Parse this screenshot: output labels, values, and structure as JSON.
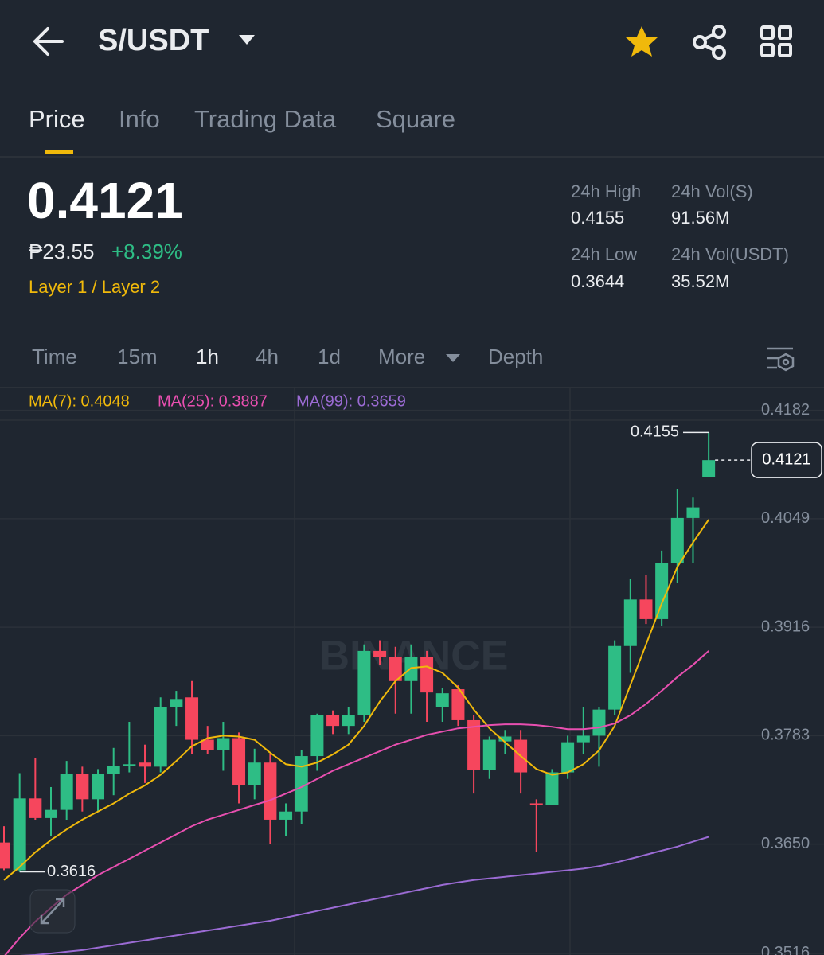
{
  "header": {
    "title": "S/USDT"
  },
  "tabs": [
    "Price",
    "Info",
    "Trading Data",
    "Square"
  ],
  "ticker": {
    "price": "0.4121",
    "local_price": "₱23.55",
    "change": "+8.39%",
    "tag": "Layer 1 / Layer 2",
    "stats": [
      {
        "label": "24h High",
        "value": "0.4155"
      },
      {
        "label": "24h Vol(S)",
        "value": "91.56M"
      },
      {
        "label": "24h Low",
        "value": "0.3644"
      },
      {
        "label": "24h Vol(USDT)",
        "value": "35.52M"
      }
    ]
  },
  "intervals": [
    "Time",
    "15m",
    "1h",
    "4h",
    "1d",
    "More",
    "Depth"
  ],
  "chart_data": {
    "type": "candlestick",
    "watermark": "BINANCE",
    "up_color": "#2ebd85",
    "down_color": "#f6465d",
    "open": [
      0.3652,
      0.3618,
      0.3706,
      0.3682,
      0.3692,
      0.3736,
      0.3705,
      0.3736,
      0.3746,
      0.375,
      0.3745,
      0.3818,
      0.383,
      0.3778,
      0.3765,
      0.378,
      0.3722,
      0.375,
      0.368,
      0.369,
      0.3758,
      0.3808,
      0.3795,
      0.3808,
      0.3887,
      0.388,
      0.385,
      0.388,
      0.3818,
      0.384,
      0.3802,
      0.3741,
      0.3776,
      0.3778,
      0.37,
      0.3698,
      0.3738,
      0.3775,
      0.3783,
      0.3815,
      0.3893,
      0.395,
      0.3926,
      0.3995,
      0.405,
      0.41
    ],
    "high": [
      0.3672,
      0.3737,
      0.3756,
      0.372,
      0.3752,
      0.3745,
      0.3742,
      0.3768,
      0.38,
      0.3772,
      0.383,
      0.3838,
      0.385,
      0.3795,
      0.38,
      0.3787,
      0.3767,
      0.376,
      0.37,
      0.3765,
      0.381,
      0.3814,
      0.3818,
      0.3895,
      0.39,
      0.3892,
      0.3895,
      0.3887,
      0.3842,
      0.3845,
      0.3808,
      0.3782,
      0.379,
      0.379,
      0.3705,
      0.3742,
      0.3783,
      0.3818,
      0.3818,
      0.39,
      0.3975,
      0.398,
      0.401,
      0.4085,
      0.4075,
      0.4155
    ],
    "low": [
      0.3618,
      0.3616,
      0.368,
      0.366,
      0.368,
      0.369,
      0.369,
      0.371,
      0.3738,
      0.3725,
      0.3738,
      0.3795,
      0.376,
      0.376,
      0.374,
      0.37,
      0.3705,
      0.365,
      0.366,
      0.3675,
      0.374,
      0.3785,
      0.3785,
      0.38,
      0.387,
      0.381,
      0.381,
      0.38,
      0.38,
      0.3795,
      0.3712,
      0.373,
      0.376,
      0.3712,
      0.364,
      0.3698,
      0.373,
      0.376,
      0.3745,
      0.3808,
      0.386,
      0.392,
      0.3918,
      0.397,
      0.3995,
      0.41
    ],
    "close": [
      0.362,
      0.3706,
      0.3682,
      0.3692,
      0.3736,
      0.3705,
      0.3736,
      0.3746,
      0.3748,
      0.3745,
      0.3818,
      0.3828,
      0.3778,
      0.3765,
      0.378,
      0.3722,
      0.375,
      0.368,
      0.369,
      0.3758,
      0.3808,
      0.3795,
      0.3808,
      0.3887,
      0.388,
      0.385,
      0.388,
      0.3836,
      0.3835,
      0.3802,
      0.3741,
      0.3778,
      0.3782,
      0.3738,
      0.3698,
      0.3738,
      0.3775,
      0.3783,
      0.3815,
      0.3893,
      0.395,
      0.3926,
      0.3995,
      0.405,
      0.4063,
      0.4121
    ],
    "series": [
      {
        "name": "MA(7): 0.4048",
        "color": "#f0b90b",
        "values": [
          0.3606,
          0.3622,
          0.364,
          0.3655,
          0.3668,
          0.368,
          0.369,
          0.37,
          0.3712,
          0.3722,
          0.3735,
          0.3752,
          0.377,
          0.378,
          0.3783,
          0.3782,
          0.3778,
          0.3762,
          0.3748,
          0.3745,
          0.375,
          0.376,
          0.3772,
          0.3795,
          0.3825,
          0.385,
          0.3866,
          0.3868,
          0.386,
          0.3842,
          0.3815,
          0.3792,
          0.3775,
          0.3758,
          0.3742,
          0.3735,
          0.3738,
          0.3748,
          0.3765,
          0.3795,
          0.3845,
          0.3895,
          0.3945,
          0.399,
          0.402,
          0.4048
        ]
      },
      {
        "name": "MA(25): 0.3887",
        "color": "#e84fb0",
        "values": [
          0.3512,
          0.3535,
          0.3555,
          0.3572,
          0.3588,
          0.36,
          0.3612,
          0.3622,
          0.3632,
          0.3642,
          0.3652,
          0.3662,
          0.3672,
          0.368,
          0.3686,
          0.3692,
          0.3698,
          0.3704,
          0.3712,
          0.372,
          0.373,
          0.374,
          0.3748,
          0.3756,
          0.3764,
          0.3772,
          0.3778,
          0.3784,
          0.3788,
          0.3792,
          0.3794,
          0.3796,
          0.3797,
          0.3797,
          0.3796,
          0.3794,
          0.3791,
          0.3791,
          0.3793,
          0.3798,
          0.3808,
          0.3822,
          0.3838,
          0.3855,
          0.387,
          0.3887
        ]
      },
      {
        "name": "MA(99): 0.3659",
        "color": "#9b6bd4",
        "values": [
          0.3512,
          0.3513,
          0.3514,
          0.3516,
          0.3518,
          0.352,
          0.3523,
          0.3526,
          0.3529,
          0.3532,
          0.3535,
          0.3538,
          0.3541,
          0.3544,
          0.3547,
          0.355,
          0.3553,
          0.3556,
          0.356,
          0.3564,
          0.3568,
          0.3572,
          0.3576,
          0.358,
          0.3584,
          0.3588,
          0.3592,
          0.3596,
          0.36,
          0.3603,
          0.3606,
          0.3608,
          0.361,
          0.3612,
          0.3614,
          0.3616,
          0.3618,
          0.362,
          0.3623,
          0.3627,
          0.3632,
          0.3637,
          0.3642,
          0.3647,
          0.3653,
          0.3659
        ]
      }
    ],
    "max_marker": 0.4155,
    "min_marker": 0.3616,
    "last_price": 0.4121,
    "ylim": [
      0.3514,
      0.421
    ],
    "yticks": [
      0.4182,
      0.4049,
      0.3916,
      0.3783,
      {
        "value": 0.365,
        "label": "0.3650"
      },
      0.3516
    ],
    "grid": true
  }
}
